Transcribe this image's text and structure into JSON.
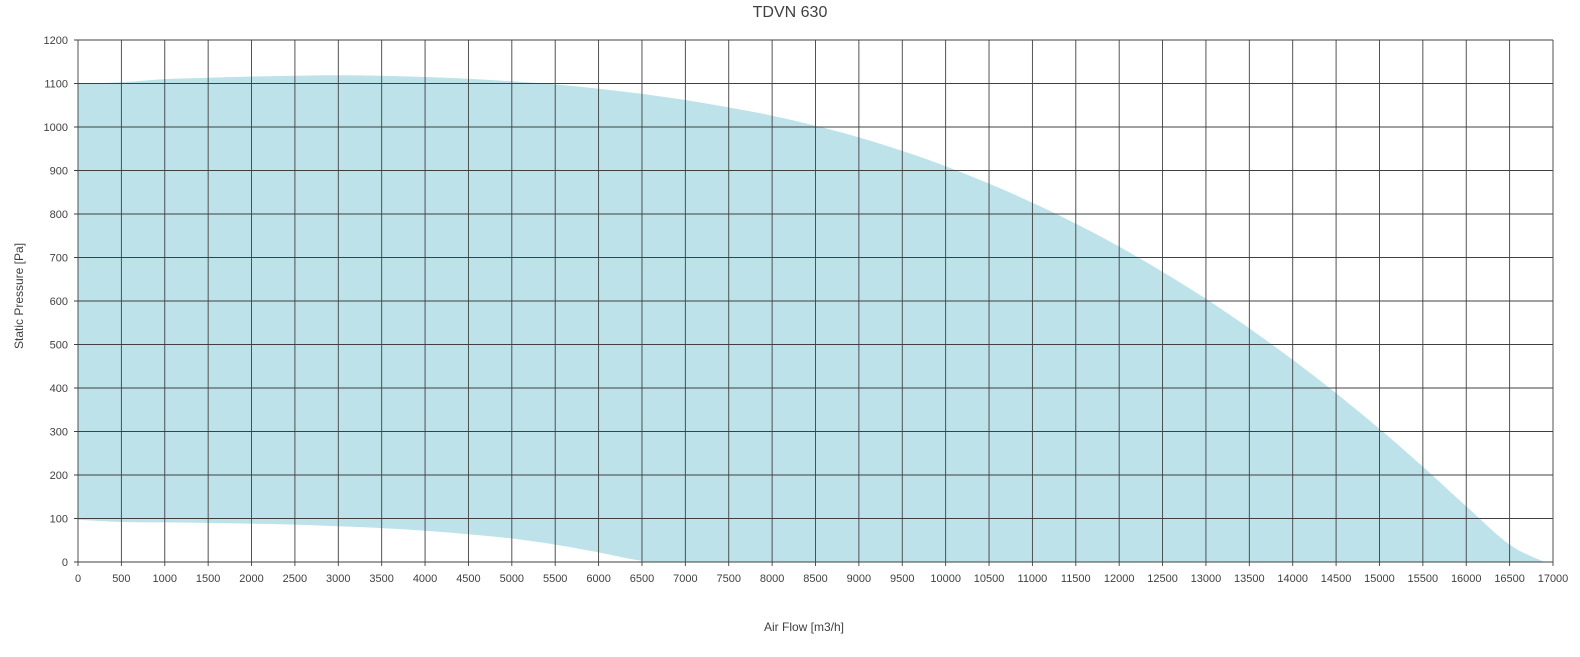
{
  "chart_data": {
    "type": "area",
    "title": "TDVN 630",
    "xlabel": "Air Flow [m3/h]",
    "ylabel": "Static Pressure [Pa]",
    "xlim": [
      0,
      17000
    ],
    "ylim": [
      0,
      1200
    ],
    "x_ticks": [
      0,
      500,
      1000,
      1500,
      2000,
      2500,
      3000,
      3500,
      4000,
      4500,
      5000,
      5500,
      6000,
      6500,
      7000,
      7500,
      8000,
      8500,
      9000,
      9500,
      10000,
      10500,
      11000,
      11500,
      12000,
      12500,
      13000,
      13500,
      14000,
      14500,
      15000,
      15500,
      16000,
      16500,
      17000
    ],
    "y_ticks": [
      0,
      100,
      200,
      300,
      400,
      500,
      600,
      700,
      800,
      900,
      1000,
      1100,
      1200
    ],
    "grid": true,
    "fill_color": "#bde2ea",
    "grid_color": "#404040",
    "upper_curve": [
      [
        0,
        1100
      ],
      [
        500,
        1103
      ],
      [
        1000,
        1110
      ],
      [
        1500,
        1113
      ],
      [
        2000,
        1116
      ],
      [
        2500,
        1118
      ],
      [
        3000,
        1119
      ],
      [
        3500,
        1118
      ],
      [
        4000,
        1115
      ],
      [
        4500,
        1111
      ],
      [
        5000,
        1105
      ],
      [
        5500,
        1098
      ],
      [
        6000,
        1088
      ],
      [
        6500,
        1076
      ],
      [
        7000,
        1062
      ],
      [
        7500,
        1045
      ],
      [
        8000,
        1026
      ],
      [
        8500,
        1003
      ],
      [
        9000,
        976
      ],
      [
        9500,
        945
      ],
      [
        10000,
        910
      ],
      [
        10500,
        870
      ],
      [
        11000,
        826
      ],
      [
        11500,
        778
      ],
      [
        12000,
        725
      ],
      [
        12500,
        667
      ],
      [
        13000,
        605
      ],
      [
        13500,
        537
      ],
      [
        14000,
        465
      ],
      [
        14500,
        388
      ],
      [
        15000,
        306
      ],
      [
        15500,
        219
      ],
      [
        16000,
        128
      ],
      [
        16500,
        40
      ],
      [
        16900,
        0
      ]
    ],
    "lower_curve": [
      [
        0,
        97
      ],
      [
        500,
        92
      ],
      [
        1000,
        91
      ],
      [
        1500,
        90
      ],
      [
        2000,
        88
      ],
      [
        2500,
        86
      ],
      [
        3000,
        82
      ],
      [
        3500,
        78
      ],
      [
        4000,
        72
      ],
      [
        4500,
        64
      ],
      [
        5000,
        54
      ],
      [
        5500,
        40
      ],
      [
        6000,
        22
      ],
      [
        6500,
        3
      ],
      [
        7000,
        0
      ],
      [
        16900,
        0
      ]
    ]
  }
}
